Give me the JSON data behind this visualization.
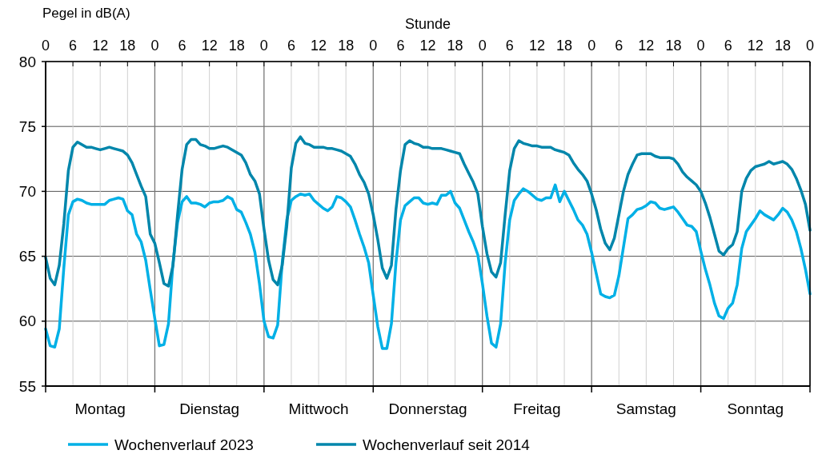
{
  "chart_data": {
    "type": "line",
    "ylabel": "Pegel in dB(A)",
    "xlabel": "Stunde",
    "categories": [
      "0",
      null,
      null,
      null,
      null,
      null,
      "6",
      null,
      null,
      null,
      null,
      null,
      "12",
      null,
      null,
      null,
      null,
      null,
      "18",
      null,
      null,
      null,
      null,
      null,
      "0",
      null,
      null,
      null,
      null,
      null,
      "6",
      null,
      null,
      null,
      null,
      null,
      "12",
      null,
      null,
      null,
      null,
      null,
      "18",
      null,
      null,
      null,
      null,
      null,
      "0",
      null,
      null,
      null,
      null,
      null,
      "6",
      null,
      null,
      null,
      null,
      null,
      "12",
      null,
      null,
      null,
      null,
      null,
      "18",
      null,
      null,
      null,
      null,
      null,
      "0",
      null,
      null,
      null,
      null,
      null,
      "6",
      null,
      null,
      null,
      null,
      null,
      "12",
      null,
      null,
      null,
      null,
      null,
      "18",
      null,
      null,
      null,
      null,
      null,
      "0",
      null,
      null,
      null,
      null,
      null,
      "6",
      null,
      null,
      null,
      null,
      null,
      "12",
      null,
      null,
      null,
      null,
      null,
      "18",
      null,
      null,
      null,
      null,
      null,
      "0",
      null,
      null,
      null,
      null,
      null,
      "6",
      null,
      null,
      null,
      null,
      null,
      "12",
      null,
      null,
      null,
      null,
      null,
      "18",
      null,
      null,
      null,
      null,
      null,
      "0",
      null,
      null,
      null,
      null,
      null,
      "6",
      null,
      null,
      null,
      null,
      null,
      "12",
      null,
      null,
      null,
      null,
      null,
      "18",
      null,
      null,
      null,
      null,
      null,
      "0"
    ],
    "annotations": [
      "Montag",
      "Dienstag",
      "Mittwoch",
      "Donnerstag",
      "Freitag",
      "Samstag",
      "Sonntag"
    ],
    "ylim": [
      55,
      80
    ],
    "yticks": [
      55,
      60,
      65,
      70,
      75,
      80
    ],
    "grid": true,
    "legend": "bottom",
    "line_style": "solid",
    "series": [
      {
        "name": "Wochenverlauf 2023",
        "color": "#00b0e6",
        "values": [
          59.4,
          58.1,
          58.0,
          59.4,
          64.1,
          68.2,
          69.2,
          69.4,
          69.3,
          69.1,
          69.0,
          69.0,
          69.0,
          69.0,
          69.3,
          69.4,
          69.5,
          69.4,
          68.5,
          68.2,
          66.7,
          66.1,
          64.7,
          62.4,
          60.2,
          58.1,
          58.2,
          59.8,
          64.5,
          67.6,
          69.2,
          69.6,
          69.1,
          69.1,
          69.0,
          68.8,
          69.1,
          69.2,
          69.2,
          69.3,
          69.6,
          69.4,
          68.6,
          68.4,
          67.6,
          66.7,
          65.3,
          62.9,
          60.0,
          58.8,
          58.7,
          59.7,
          64.5,
          67.8,
          69.3,
          69.6,
          69.8,
          69.7,
          69.8,
          69.3,
          69.0,
          68.7,
          68.5,
          68.8,
          69.6,
          69.5,
          69.2,
          68.8,
          67.8,
          66.7,
          65.7,
          64.5,
          62.0,
          59.6,
          57.9,
          57.9,
          59.8,
          64.5,
          67.8,
          68.9,
          69.2,
          69.5,
          69.5,
          69.1,
          69.0,
          69.1,
          69.0,
          69.7,
          69.7,
          70.0,
          69.1,
          68.7,
          67.8,
          66.9,
          66.1,
          65.1,
          62.9,
          60.4,
          58.3,
          58.0,
          59.8,
          64.5,
          67.8,
          69.3,
          69.8,
          70.2,
          70.0,
          69.7,
          69.4,
          69.3,
          69.5,
          69.5,
          70.5,
          69.2,
          70.0,
          69.3,
          68.6,
          67.8,
          67.4,
          66.7,
          65.3,
          63.7,
          62.1,
          61.9,
          61.8,
          62.0,
          63.5,
          65.7,
          67.9,
          68.2,
          68.6,
          68.7,
          68.9,
          69.2,
          69.1,
          68.7,
          68.6,
          68.7,
          68.8,
          68.4,
          67.9,
          67.4,
          67.3,
          66.9,
          65.4,
          64.0,
          62.8,
          61.4,
          60.4,
          60.2,
          61.0,
          61.4,
          62.8,
          65.6,
          66.9,
          67.4,
          67.9,
          68.5,
          68.2,
          68.0,
          67.8,
          68.2,
          68.7,
          68.4,
          67.8,
          66.9,
          65.6,
          64.0,
          62.1
        ]
      },
      {
        "name": "Wochenverlauf seit 2014",
        "color": "#0086ab",
        "values": [
          64.9,
          63.3,
          62.8,
          64.3,
          67.5,
          71.6,
          73.4,
          73.8,
          73.6,
          73.4,
          73.4,
          73.3,
          73.2,
          73.3,
          73.4,
          73.3,
          73.2,
          73.1,
          72.8,
          72.2,
          71.3,
          70.4,
          69.6,
          66.7,
          66.0,
          64.5,
          62.9,
          62.7,
          64.3,
          68.2,
          71.7,
          73.6,
          74.0,
          74.0,
          73.6,
          73.5,
          73.3,
          73.3,
          73.4,
          73.5,
          73.4,
          73.2,
          73.0,
          72.8,
          72.2,
          71.3,
          70.8,
          69.8,
          67.1,
          64.7,
          63.2,
          62.8,
          64.3,
          67.3,
          71.8,
          73.7,
          74.2,
          73.7,
          73.6,
          73.4,
          73.4,
          73.4,
          73.3,
          73.3,
          73.2,
          73.1,
          72.9,
          72.7,
          72.1,
          71.3,
          70.7,
          69.8,
          68.2,
          66.3,
          64.1,
          63.3,
          64.3,
          68.6,
          71.6,
          73.6,
          73.9,
          73.7,
          73.6,
          73.4,
          73.4,
          73.3,
          73.3,
          73.3,
          73.2,
          73.1,
          73.0,
          72.9,
          72.1,
          71.4,
          70.7,
          69.8,
          67.3,
          65.2,
          63.8,
          63.4,
          64.5,
          68.2,
          71.6,
          73.3,
          73.9,
          73.7,
          73.6,
          73.5,
          73.5,
          73.4,
          73.4,
          73.4,
          73.2,
          73.1,
          73.0,
          72.8,
          72.2,
          71.7,
          71.3,
          70.8,
          69.8,
          68.6,
          67.1,
          66.0,
          65.5,
          66.4,
          68.2,
          70.0,
          71.3,
          72.1,
          72.8,
          72.9,
          72.9,
          72.9,
          72.7,
          72.6,
          72.6,
          72.6,
          72.5,
          72.1,
          71.5,
          71.1,
          70.8,
          70.5,
          70.0,
          69.1,
          68.0,
          66.7,
          65.4,
          65.1,
          65.6,
          65.9,
          66.9,
          70.0,
          71.0,
          71.6,
          71.9,
          72.0,
          72.1,
          72.3,
          72.1,
          72.2,
          72.3,
          72.1,
          71.7,
          71.0,
          70.1,
          69.0,
          67.0
        ]
      }
    ]
  }
}
